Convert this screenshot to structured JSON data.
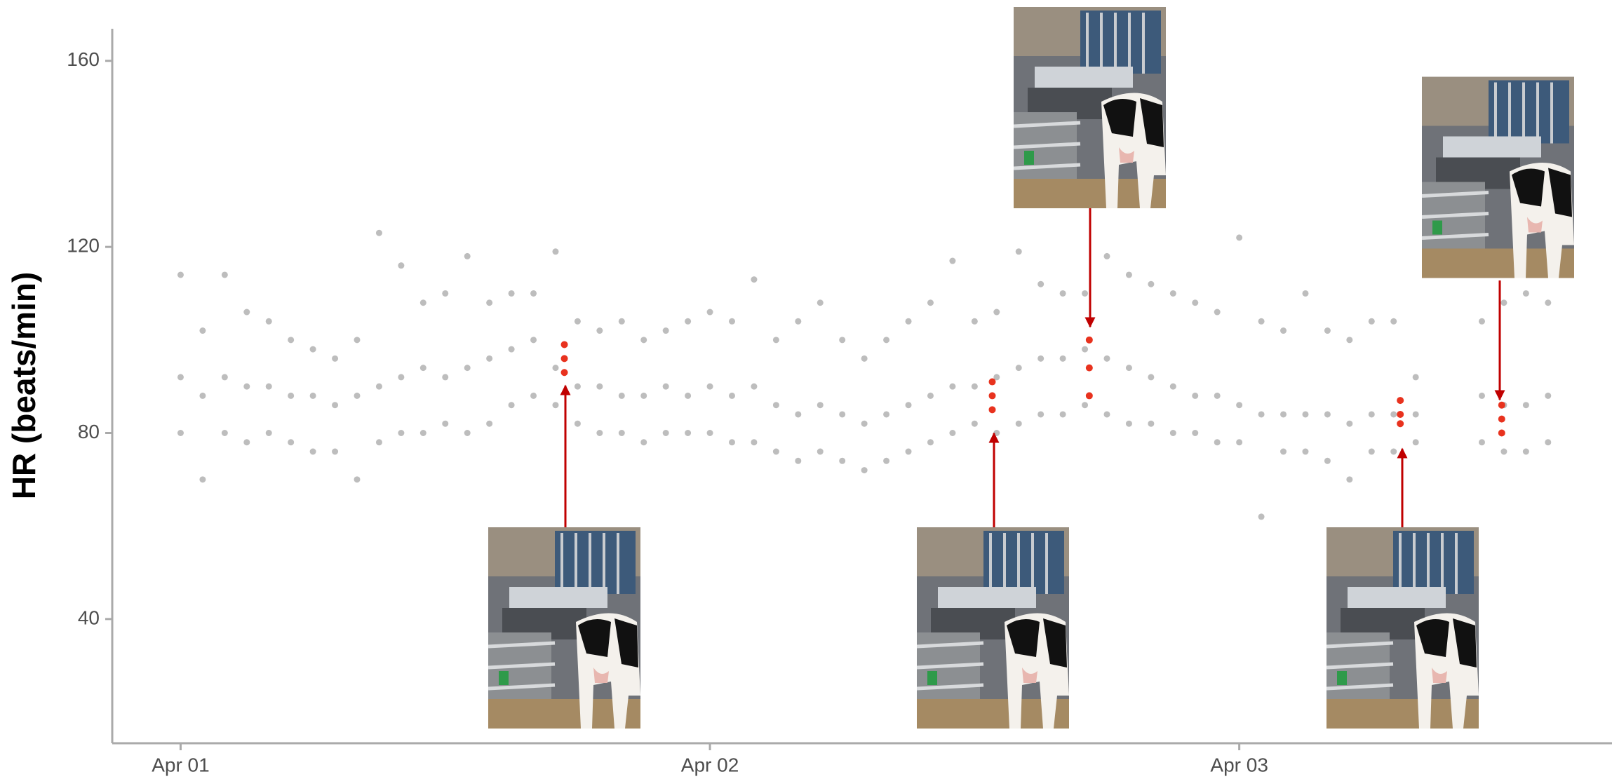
{
  "chart_data": {
    "type": "scatter",
    "y_label": "HR (beats/min)",
    "color": "#bdbdbd",
    "xlim": [
      -3.1,
      64.9
    ],
    "ylim": [
      13.3,
      166.9
    ],
    "xticks": [
      {
        "value": 0,
        "label": "Apr 01"
      },
      {
        "value": 24,
        "label": "Apr 02"
      },
      {
        "value": 48,
        "label": "Apr 03"
      }
    ],
    "yticks": [
      40,
      80,
      120,
      160
    ],
    "x": [
      0,
      0,
      0,
      1,
      1,
      1,
      2,
      2,
      2,
      3,
      3,
      3,
      4,
      4,
      4,
      5,
      5,
      5,
      6,
      6,
      6,
      7,
      7,
      7,
      8,
      8,
      8,
      9,
      9,
      9,
      10,
      10,
      10,
      11,
      11,
      11,
      12,
      12,
      12,
      13,
      13,
      13,
      14,
      14,
      14,
      15,
      15,
      15,
      16,
      16,
      16,
      17,
      17,
      17,
      18,
      18,
      18,
      19,
      19,
      19,
      20,
      20,
      20,
      21,
      21,
      21,
      22,
      22,
      22,
      23,
      23,
      23,
      24,
      24,
      24,
      25,
      25,
      25,
      26,
      26,
      26,
      27,
      27,
      27,
      28,
      28,
      28,
      29,
      29,
      29,
      30,
      30,
      30,
      31,
      31,
      31,
      32,
      32,
      32,
      33,
      33,
      33,
      34,
      34,
      34,
      35,
      35,
      35,
      36,
      36,
      36,
      37,
      37,
      37,
      38,
      38,
      38,
      39,
      39,
      39,
      40,
      40,
      40,
      41,
      41,
      41,
      42,
      42,
      42,
      43,
      43,
      43,
      44,
      44,
      44,
      45,
      45,
      45,
      46,
      46,
      46,
      47,
      47,
      47,
      48,
      48,
      48,
      49,
      49,
      49,
      50,
      50,
      50,
      51,
      51,
      51,
      52,
      52,
      52,
      53,
      53,
      53,
      54,
      54,
      54,
      55,
      55,
      55,
      56,
      56,
      56,
      59,
      59,
      59,
      60,
      60,
      60,
      61,
      61,
      61,
      62,
      62,
      62
    ],
    "values": [
      80,
      92,
      114,
      70,
      88,
      102,
      80,
      92,
      114,
      78,
      90,
      106,
      80,
      90,
      104,
      78,
      88,
      100,
      76,
      88,
      98,
      76,
      86,
      96,
      70,
      88,
      100,
      78,
      90,
      123,
      80,
      92,
      116,
      80,
      94,
      108,
      82,
      92,
      110,
      80,
      94,
      118,
      82,
      96,
      108,
      86,
      98,
      110,
      88,
      100,
      110,
      86,
      94,
      119,
      82,
      90,
      104,
      80,
      90,
      102,
      80,
      88,
      104,
      78,
      88,
      100,
      80,
      90,
      102,
      80,
      88,
      104,
      80,
      90,
      106,
      78,
      88,
      104,
      78,
      90,
      113,
      76,
      86,
      100,
      74,
      84,
      104,
      76,
      86,
      108,
      74,
      84,
      100,
      72,
      82,
      96,
      74,
      84,
      100,
      76,
      86,
      104,
      78,
      88,
      108,
      80,
      90,
      117,
      82,
      90,
      104,
      80,
      92,
      106,
      82,
      94,
      119,
      84,
      96,
      112,
      84,
      96,
      110,
      86,
      98,
      110,
      84,
      96,
      118,
      82,
      94,
      114,
      82,
      92,
      112,
      80,
      90,
      110,
      80,
      88,
      108,
      78,
      88,
      106,
      78,
      86,
      122,
      62,
      84,
      104,
      76,
      84,
      102,
      76,
      84,
      110,
      74,
      84,
      102,
      70,
      82,
      100,
      76,
      84,
      104,
      76,
      84,
      104,
      78,
      84,
      92,
      78,
      88,
      104,
      76,
      86,
      108,
      76,
      86,
      110,
      78,
      88,
      108
    ],
    "highlight": {
      "color": "#e8321e",
      "x": [
        17.4,
        17.4,
        17.4,
        36.8,
        36.8,
        36.8,
        41.2,
        41.2,
        41.2,
        55.3,
        55.3,
        55.3,
        59.9,
        59.9,
        59.9
      ],
      "values": [
        93,
        96,
        99,
        85,
        88,
        91,
        88,
        94,
        100,
        82,
        84,
        87,
        80,
        83,
        86
      ]
    }
  }
}
